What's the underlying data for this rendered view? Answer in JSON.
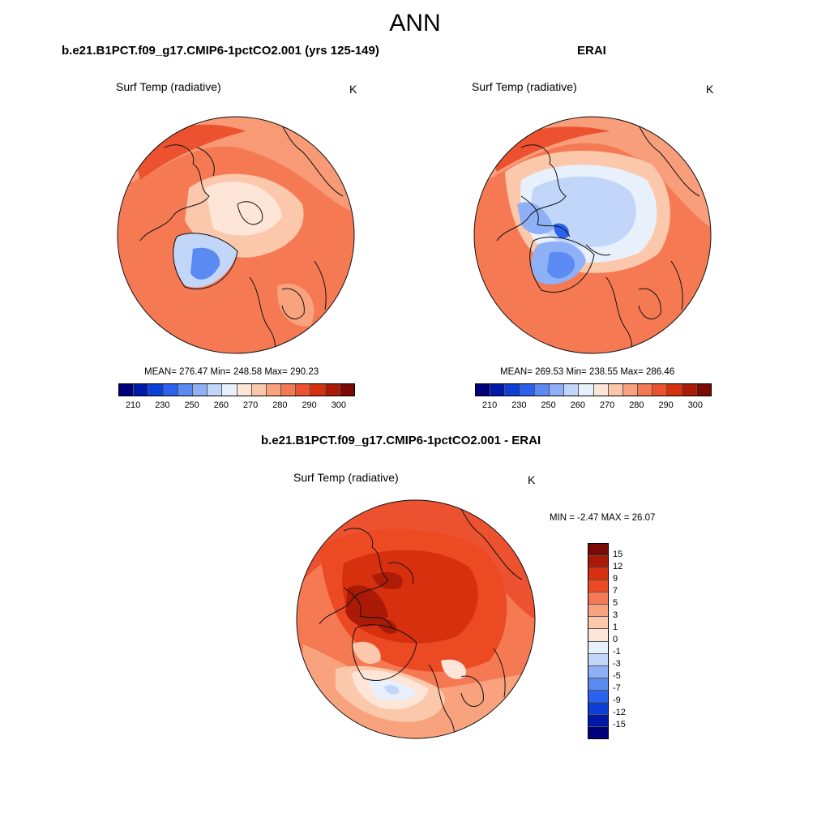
{
  "figure": {
    "title": "ANN"
  },
  "panels": [
    {
      "id": "model",
      "title": "b.e21.B1PCT.f09_g17.CMIP6-1pctCO2.001 (yrs 125-149)",
      "variable": "Surf Temp (radiative)",
      "units": "K",
      "stats": "MEAN= 276.47  Min= 248.58  Max= 290.23"
    },
    {
      "id": "obs",
      "title": "ERAI",
      "variable": "Surf Temp (radiative)",
      "units": "K",
      "stats": "MEAN= 269.53  Min= 238.55  Max= 286.46"
    },
    {
      "id": "diff",
      "title": "b.e21.B1PCT.f09_g17.CMIP6-1pctCO2.001 - ERAI",
      "variable": "Surf Temp (radiative)",
      "units": "K",
      "stats": "MIN =  -2.47 MAX =  26.07"
    }
  ],
  "colorbar_abs": {
    "colors": [
      "#00007a",
      "#0019a8",
      "#0c3fd6",
      "#2a62ee",
      "#5a8af2",
      "#8eb0f6",
      "#c2d6fa",
      "#e8f0fc",
      "#fde6d8",
      "#fcc8ac",
      "#f9a27e",
      "#f57a54",
      "#ec5230",
      "#d6300e",
      "#aa1a06",
      "#7a0a03"
    ],
    "ticks": [
      "210",
      "230",
      "250",
      "260",
      "270",
      "280",
      "290",
      "300"
    ]
  },
  "colorbar_diff": {
    "colors": [
      "#7a0a03",
      "#aa1a06",
      "#d6300e",
      "#ec4a22",
      "#f57a54",
      "#f9a27e",
      "#fcc8ac",
      "#fde6d8",
      "#e8f0fc",
      "#c2d6fa",
      "#8eb0f6",
      "#5a8af2",
      "#2a62ee",
      "#0c3fd6",
      "#0019a8",
      "#00007a"
    ],
    "ticks": [
      "15",
      "12",
      "9",
      "7",
      "5",
      "3",
      "1",
      "0",
      "-1",
      "-3",
      "-5",
      "-7",
      "-9",
      "-12",
      "-15"
    ]
  }
}
